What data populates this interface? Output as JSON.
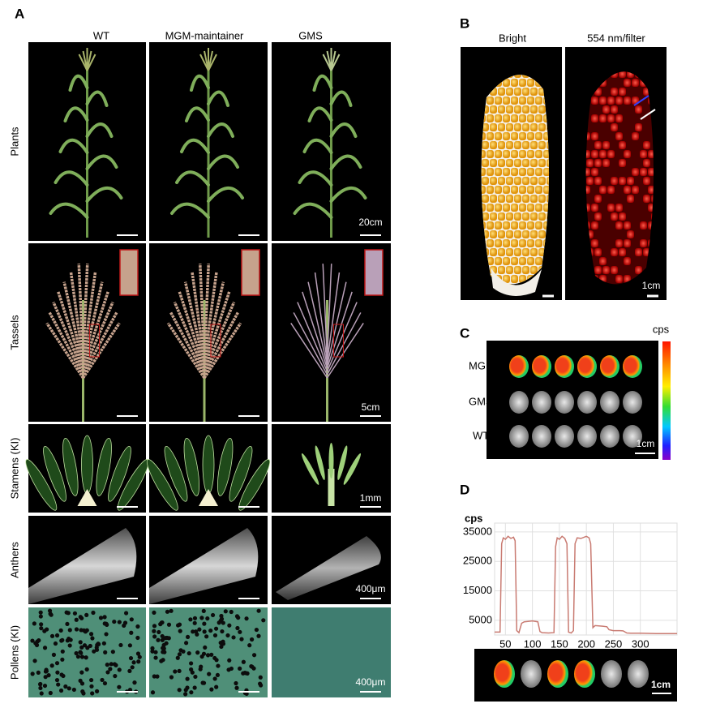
{
  "panel_a": {
    "label": "A",
    "columns": [
      "WT",
      "MGM-maintainer",
      "GMS"
    ],
    "rows": [
      "Plants",
      "Tassels",
      "Stamens (KI)",
      "Anthers",
      "Pollens (KI)"
    ],
    "scale_bars": [
      "20cm",
      "5cm",
      "1mm",
      "400μm",
      "400μm"
    ]
  },
  "panel_b": {
    "label": "B",
    "columns": [
      "Bright",
      "554 nm/filter"
    ],
    "scale_bar": "1cm"
  },
  "panel_c": {
    "label": "C",
    "colorbar_label": "cps",
    "rows": [
      "MGM",
      "GMS",
      "WT"
    ],
    "scale_bar": "1cm"
  },
  "panel_d": {
    "label": "D",
    "scale_bar": "1cm",
    "chart_data": {
      "type": "line",
      "y_label": "cps",
      "x": [
        30,
        40,
        43,
        46,
        50,
        55,
        60,
        65,
        68,
        71,
        75,
        80,
        85,
        100,
        110,
        114,
        118,
        130,
        140,
        143,
        146,
        150,
        155,
        160,
        164,
        167,
        172,
        176,
        179,
        183,
        190,
        200,
        205,
        208,
        212,
        216,
        230,
        238,
        242,
        250,
        262,
        268,
        275,
        282,
        300,
        330,
        368
      ],
      "values": [
        1000,
        1000,
        31000,
        33000,
        32500,
        33500,
        32800,
        33200,
        32000,
        1500,
        800,
        4000,
        4500,
        4800,
        4500,
        1200,
        800,
        700,
        800,
        30000,
        33000,
        32500,
        33500,
        32800,
        31000,
        1000,
        700,
        1500,
        31000,
        33000,
        32800,
        33500,
        33000,
        31000,
        2500,
        3200,
        3000,
        2800,
        1800,
        1500,
        1500,
        1400,
        700,
        600,
        600,
        500,
        500
      ],
      "color": "#c97b72",
      "xlim": [
        30,
        368
      ],
      "ylim": [
        0,
        38000
      ],
      "xticks": [
        50,
        100,
        150,
        200,
        250,
        300
      ],
      "yticks": [
        5000,
        15000,
        25000,
        35000
      ],
      "grid": true
    }
  }
}
